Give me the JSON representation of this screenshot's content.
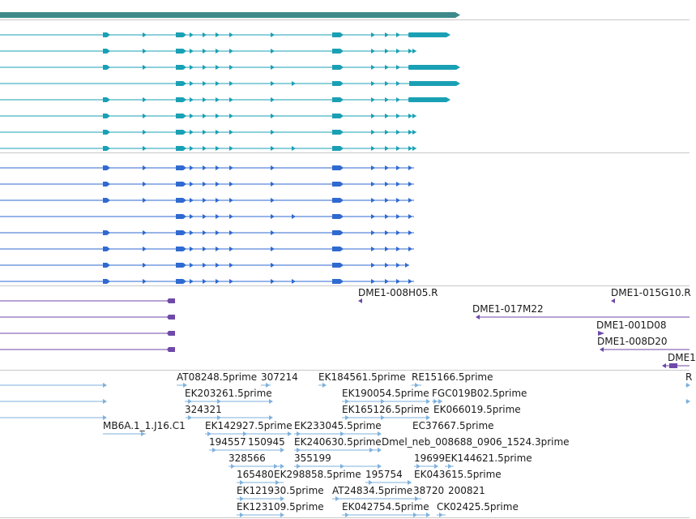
{
  "colors": {
    "gene": "#3e8a8a",
    "transcript_cyan": "#1aa0b4",
    "transcript_blue": "#2f6ad0",
    "clone_purple": "#6e4aa8",
    "est_light": "#7fb2de",
    "separator": "#c8c8c8"
  },
  "tracks": {
    "gene": {
      "name": "gene-track"
    },
    "transcripts_a": {
      "name": "transcript-track-a",
      "row_count": 8
    },
    "transcripts_b": {
      "name": "transcript-track-b",
      "row_count": 8
    },
    "clones": {
      "name": "clone-end-track",
      "labels": [
        "DME1-008H05.R",
        "DME1-015G10.R",
        "DME1-017M22",
        "DME1-001D08",
        "DME1-008D20",
        "DME1"
      ]
    },
    "ests": {
      "name": "est-track",
      "labels": [
        "AT08248.5prime",
        "307214",
        "EK184561.5prime",
        "RE15166.5prime",
        "EK203261.5prime",
        "EK190054.5prime",
        "FGC019B02.5prime",
        "324321",
        "EK165126.5prime",
        "EK066019.5prime",
        "MB6A.1_1.J16.C1",
        "EK142927.5prime",
        "EK233045.5prime",
        "EC37667.5prime",
        "194557",
        "150945",
        "EK240630.5prime",
        "Dmel_neb_008688_0906_1524.3prime",
        "328566",
        "355199",
        "19699",
        "EK144621.5prime",
        "165480",
        "EK298858.5prime",
        "195754",
        "EK043615.5prime",
        "EK121930.5prime",
        "AT24834.5prime",
        "38720",
        "200821",
        "EK123109.5prime",
        "EK042754.5prime",
        "CK02425.5prime",
        "R"
      ]
    }
  }
}
